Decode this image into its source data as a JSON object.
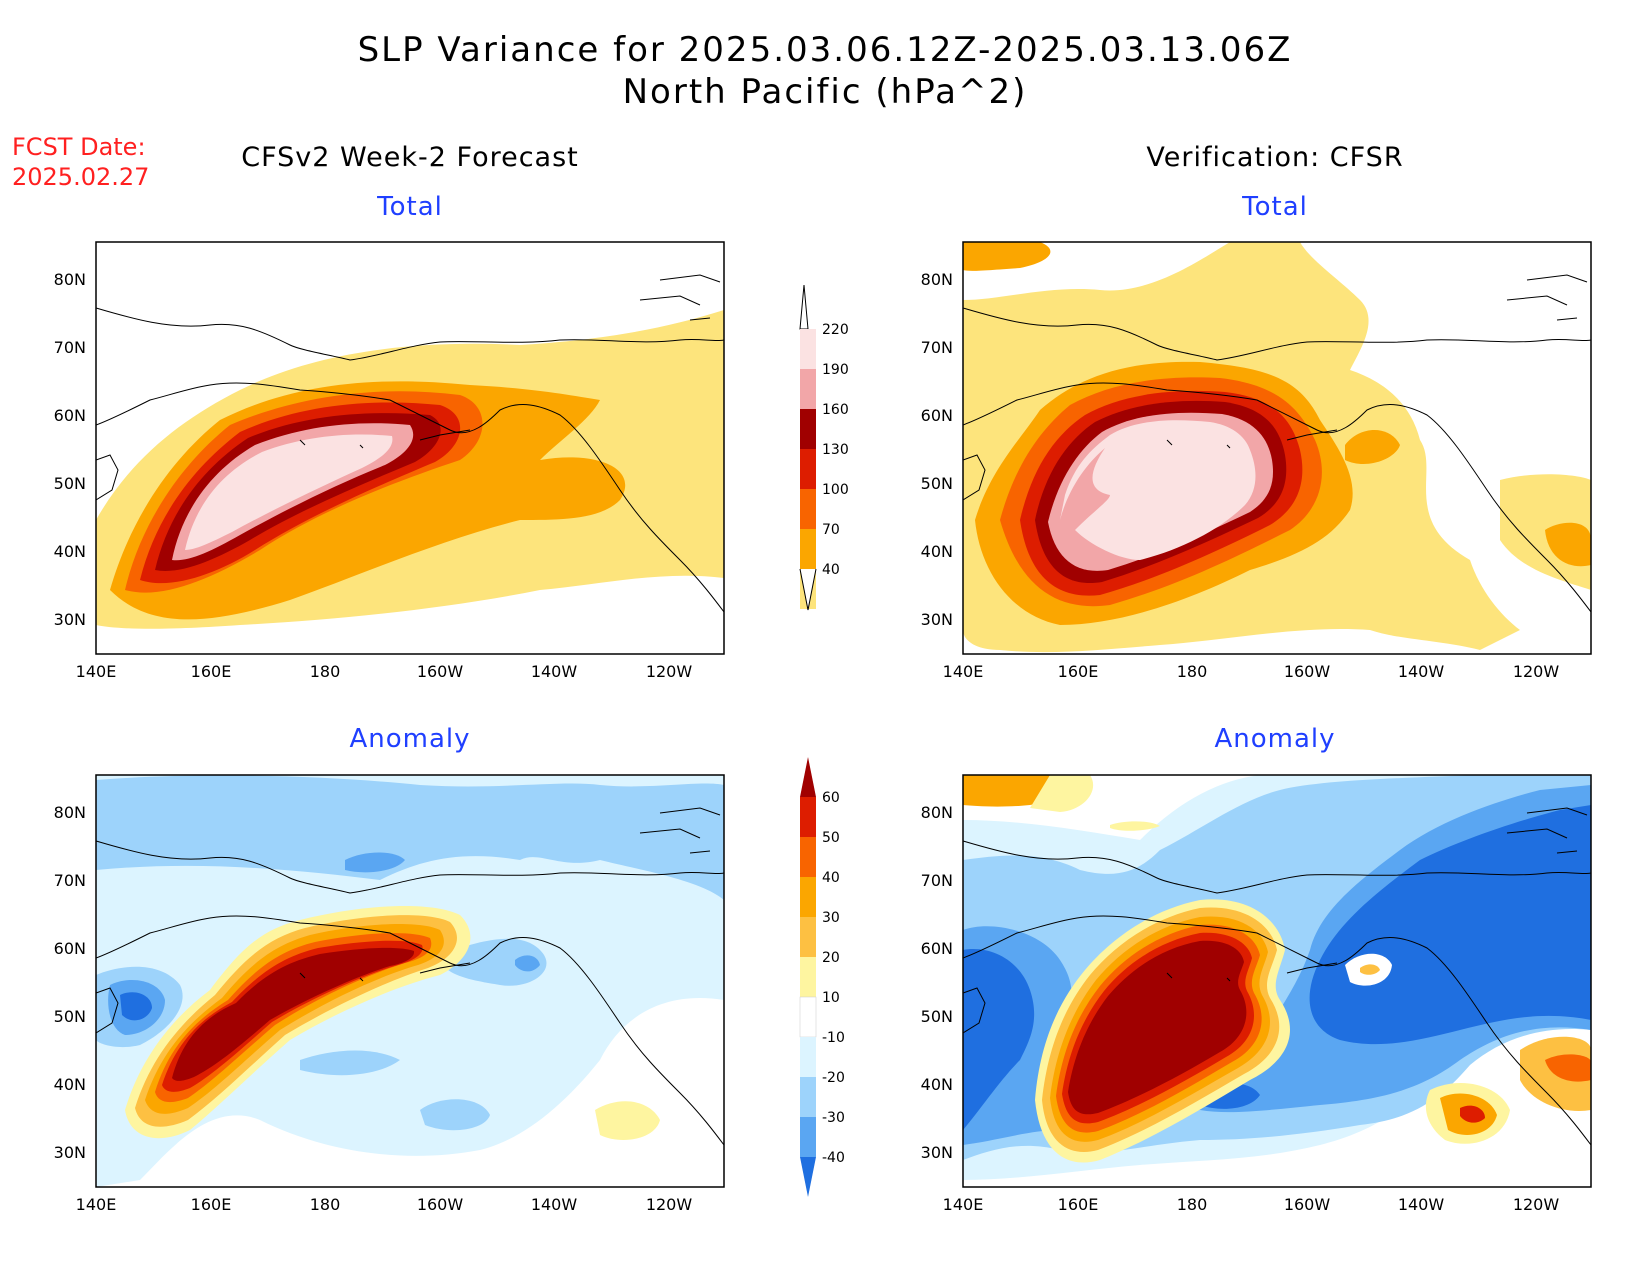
{
  "header": {
    "title_line1": "SLP Variance for 2025.03.06.12Z-2025.03.13.06Z",
    "title_line2": "North Pacific (hPa^2)"
  },
  "fcst": {
    "label": "FCST Date:",
    "date": "2025.02.27"
  },
  "columns": {
    "left": "CFSv2 Week-2 Forecast",
    "right": "Verification: CFSR"
  },
  "panels": {
    "top_left": "Total",
    "top_right": "Total",
    "bottom_left": "Anomaly",
    "bottom_right": "Anomaly"
  },
  "axes": {
    "lat_labels": [
      "80N",
      "70N",
      "60N",
      "50N",
      "40N",
      "30N"
    ],
    "lon_labels": [
      "140E",
      "160E",
      "180",
      "160W",
      "140W",
      "120W"
    ]
  },
  "colorbars": {
    "total": {
      "labels": [
        "220",
        "190",
        "160",
        "130",
        "100",
        "70",
        "40"
      ],
      "colors": [
        "#fbe2e2",
        "#f2a6a8",
        "#a00000",
        "#dd1d00",
        "#f86400",
        "#fba600",
        "#fde47c"
      ]
    },
    "anomaly": {
      "labels": [
        "60",
        "50",
        "40",
        "30",
        "20",
        "10",
        "-10",
        "-20",
        "-30",
        "-40"
      ],
      "colors": [
        "#a00000",
        "#dd1d00",
        "#f86400",
        "#fba600",
        "#fdc042",
        "#fef5a0",
        "#ffffff",
        "#dcf4ff",
        "#9dd3fb",
        "#5aa6f2",
        "#1f6fe0"
      ]
    }
  },
  "map_colors": {
    "total_levels": [
      "#fde47c",
      "#fba600",
      "#f86400",
      "#dd1d00",
      "#a00000",
      "#f2a6a8",
      "#fbe2e2"
    ],
    "anom_pos": [
      "#fef5a0",
      "#fdc042",
      "#fba600",
      "#f86400",
      "#dd1d00",
      "#a00000"
    ],
    "anom_neg": [
      "#dcf4ff",
      "#9dd3fb",
      "#5aa6f2",
      "#1f6fe0"
    ]
  }
}
